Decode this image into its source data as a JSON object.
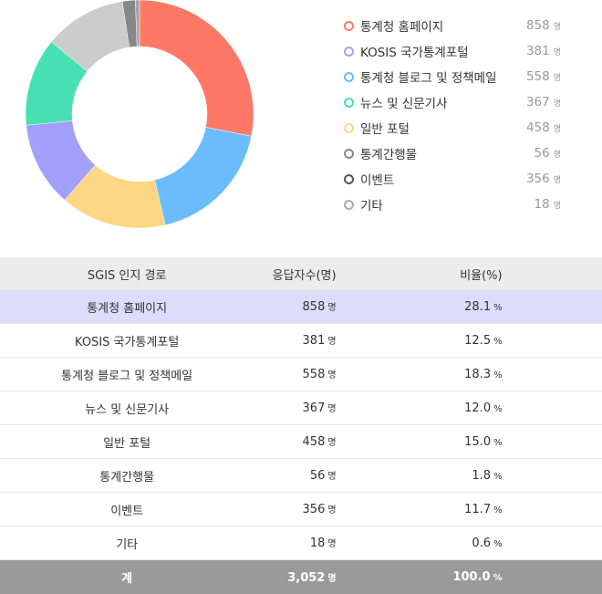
{
  "chart_data": {
    "type": "pie",
    "donut": true,
    "categories": [
      "통계청 홈페이지",
      "KOSIS 국가통계포털",
      "통계청 블로그 및 정책메일",
      "뉴스 및 신문기사",
      "일반 포털",
      "통계간행물",
      "이벤트",
      "기타"
    ],
    "values": [
      858,
      381,
      558,
      367,
      458,
      56,
      356,
      18
    ],
    "colors": [
      "#ff7866",
      "#6bbcfd",
      "#ffd683",
      "#a39ffc",
      "#48e0b3",
      "#cccccc",
      "#888888",
      "#a5a5a5"
    ],
    "legend_colors": [
      "#ff7866",
      "#a39ffc",
      "#6bbcfd",
      "#48e0b3",
      "#ffd683",
      "#888888",
      "#555555",
      "#aaaaaa"
    ],
    "legend_position": "right"
  },
  "legend": {
    "unit": "명",
    "items": [
      {
        "label": "통계청 홈페이지",
        "value": "858"
      },
      {
        "label": "KOSIS 국가통계포털",
        "value": "381"
      },
      {
        "label": "통계청 블로그 및 정책메일",
        "value": "558"
      },
      {
        "label": "뉴스 및 신문기사",
        "value": "367"
      },
      {
        "label": "일반 포털",
        "value": "458"
      },
      {
        "label": "통계간행물",
        "value": "56"
      },
      {
        "label": "이벤트",
        "value": "356"
      },
      {
        "label": "기타",
        "value": "18"
      }
    ]
  },
  "table": {
    "headers": [
      "SGIS 인지 경로",
      "응답자수(명)",
      "비율(%)"
    ],
    "count_unit": "명",
    "ratio_unit": "%",
    "rows": [
      {
        "label": "통계청 홈페이지",
        "count": "858",
        "ratio": "28.1"
      },
      {
        "label": "KOSIS 국가통계포털",
        "count": "381",
        "ratio": "12.5"
      },
      {
        "label": "통계청 블로그 및 정책메일",
        "count": "558",
        "ratio": "18.3"
      },
      {
        "label": "뉴스 및 신문기사",
        "count": "367",
        "ratio": "12.0"
      },
      {
        "label": "일반 포털",
        "count": "458",
        "ratio": "15.0"
      },
      {
        "label": "통계간행물",
        "count": "56",
        "ratio": "1.8"
      },
      {
        "label": "이벤트",
        "count": "356",
        "ratio": "11.7"
      },
      {
        "label": "기타",
        "count": "18",
        "ratio": "0.6"
      }
    ],
    "total": {
      "label": "계",
      "count": "3,052",
      "ratio": "100.0"
    }
  }
}
